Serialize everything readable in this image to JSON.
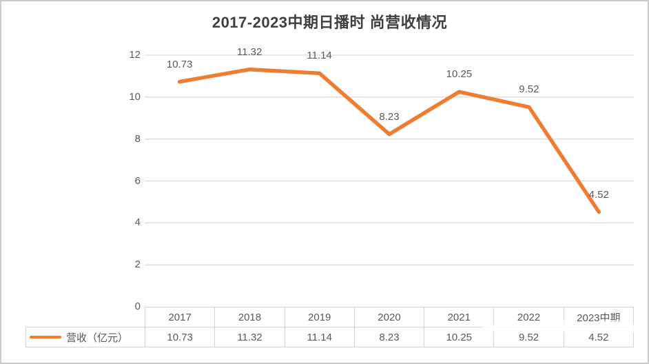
{
  "chart": {
    "title": "2017-2023中期日播时 尚营收情况",
    "legend_label": "营收（亿元）"
  },
  "chart_data": {
    "type": "line",
    "title": "2017-2023中期日播时 尚营收情况",
    "categories": [
      "2017",
      "2018",
      "2019",
      "2020",
      "2021",
      "2022",
      "2023中期"
    ],
    "series": [
      {
        "name": "营收（亿元）",
        "values": [
          10.73,
          11.32,
          11.14,
          8.23,
          10.25,
          9.52,
          4.52
        ]
      }
    ],
    "xlabel": "",
    "ylabel": "",
    "ylim": [
      0,
      12
    ],
    "yticks": [
      12,
      10,
      8,
      6,
      4,
      2,
      0
    ],
    "grid": true,
    "legend_position": "table-row-left",
    "data_table_shown": true,
    "colors": {
      "line": "#ED7D31",
      "gridline": "#DCDCDC",
      "axis_text": "#595959",
      "title_text": "#3F3F3F",
      "table_border": "#D3D3D3"
    }
  }
}
